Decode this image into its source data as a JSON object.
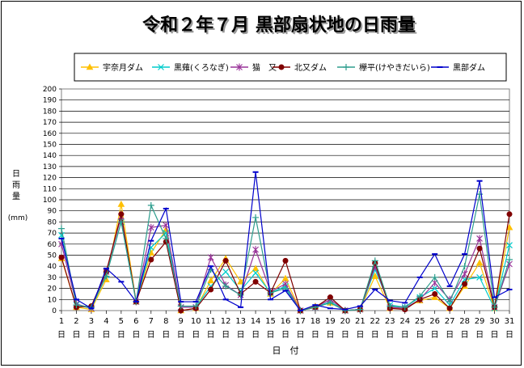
{
  "chart_data": {
    "type": "line",
    "title": "令和２年７月 黒部扇状地の日雨量",
    "xlabel": "日　付",
    "ylabel": "日雨量",
    "yunit": "(mm)",
    "x_ticks": [
      "1",
      "2",
      "3",
      "4",
      "5",
      "6",
      "7",
      "8",
      "9",
      "10",
      "11",
      "12",
      "13",
      "14",
      "15",
      "16",
      "17",
      "18",
      "19",
      "20",
      "21",
      "22",
      "23",
      "24",
      "25",
      "26",
      "27",
      "28",
      "29",
      "30",
      "31"
    ],
    "x_tick_suffix": "日",
    "ylim": [
      0,
      200
    ],
    "ytick_step": 10,
    "grid": true,
    "legend_position": "top",
    "series": [
      {
        "name": "宇奈月ダム",
        "color": "#FFC000",
        "marker": "triangle",
        "values": [
          47,
          3,
          1,
          28,
          96,
          8,
          52,
          73,
          0,
          2,
          27,
          47,
          26,
          38,
          15,
          29,
          0,
          4,
          7,
          0,
          1,
          31,
          2,
          2,
          9,
          12,
          2,
          22,
          43,
          2,
          75
        ]
      },
      {
        "name": "黒薙(くろなぎ)",
        "color": "#00CCCC",
        "marker": "x",
        "values": [
          68,
          5,
          2,
          32,
          80,
          8,
          57,
          70,
          3,
          3,
          22,
          35,
          18,
          34,
          16,
          22,
          0,
          3,
          8,
          0,
          1,
          37,
          5,
          3,
          12,
          20,
          5,
          28,
          30,
          2,
          59
        ]
      },
      {
        "name": "猫　又",
        "color": "#993399",
        "marker": "star",
        "values": [
          60,
          6,
          2,
          35,
          85,
          8,
          75,
          77,
          3,
          3,
          48,
          23,
          14,
          55,
          17,
          24,
          0,
          3,
          10,
          0,
          1,
          40,
          3,
          2,
          10,
          25,
          10,
          33,
          65,
          3,
          42
        ]
      },
      {
        "name": "北又ダム",
        "color": "#800000",
        "marker": "circle",
        "values": [
          48,
          3,
          4,
          35,
          87,
          8,
          46,
          62,
          0,
          2,
          19,
          45,
          15,
          26,
          16,
          45,
          0,
          3,
          12,
          0,
          1,
          43,
          2,
          1,
          10,
          15,
          2,
          24,
          56,
          3,
          87
        ]
      },
      {
        "name": "欅平(けやきだいら)",
        "color": "#2E9E8E",
        "marker": "plus",
        "values": [
          74,
          5,
          3,
          31,
          80,
          8,
          95,
          65,
          4,
          4,
          37,
          22,
          14,
          84,
          16,
          20,
          0,
          3,
          7,
          0,
          1,
          45,
          4,
          3,
          13,
          30,
          8,
          40,
          105,
          3,
          46
        ]
      },
      {
        "name": "黒部ダム",
        "color": "#0000CC",
        "marker": "dash",
        "values": [
          65,
          10,
          2,
          38,
          26,
          8,
          63,
          92,
          8,
          8,
          40,
          10,
          3,
          125,
          10,
          18,
          0,
          5,
          2,
          1,
          4,
          19,
          9,
          7,
          30,
          51,
          22,
          51,
          117,
          12,
          19
        ]
      }
    ]
  }
}
